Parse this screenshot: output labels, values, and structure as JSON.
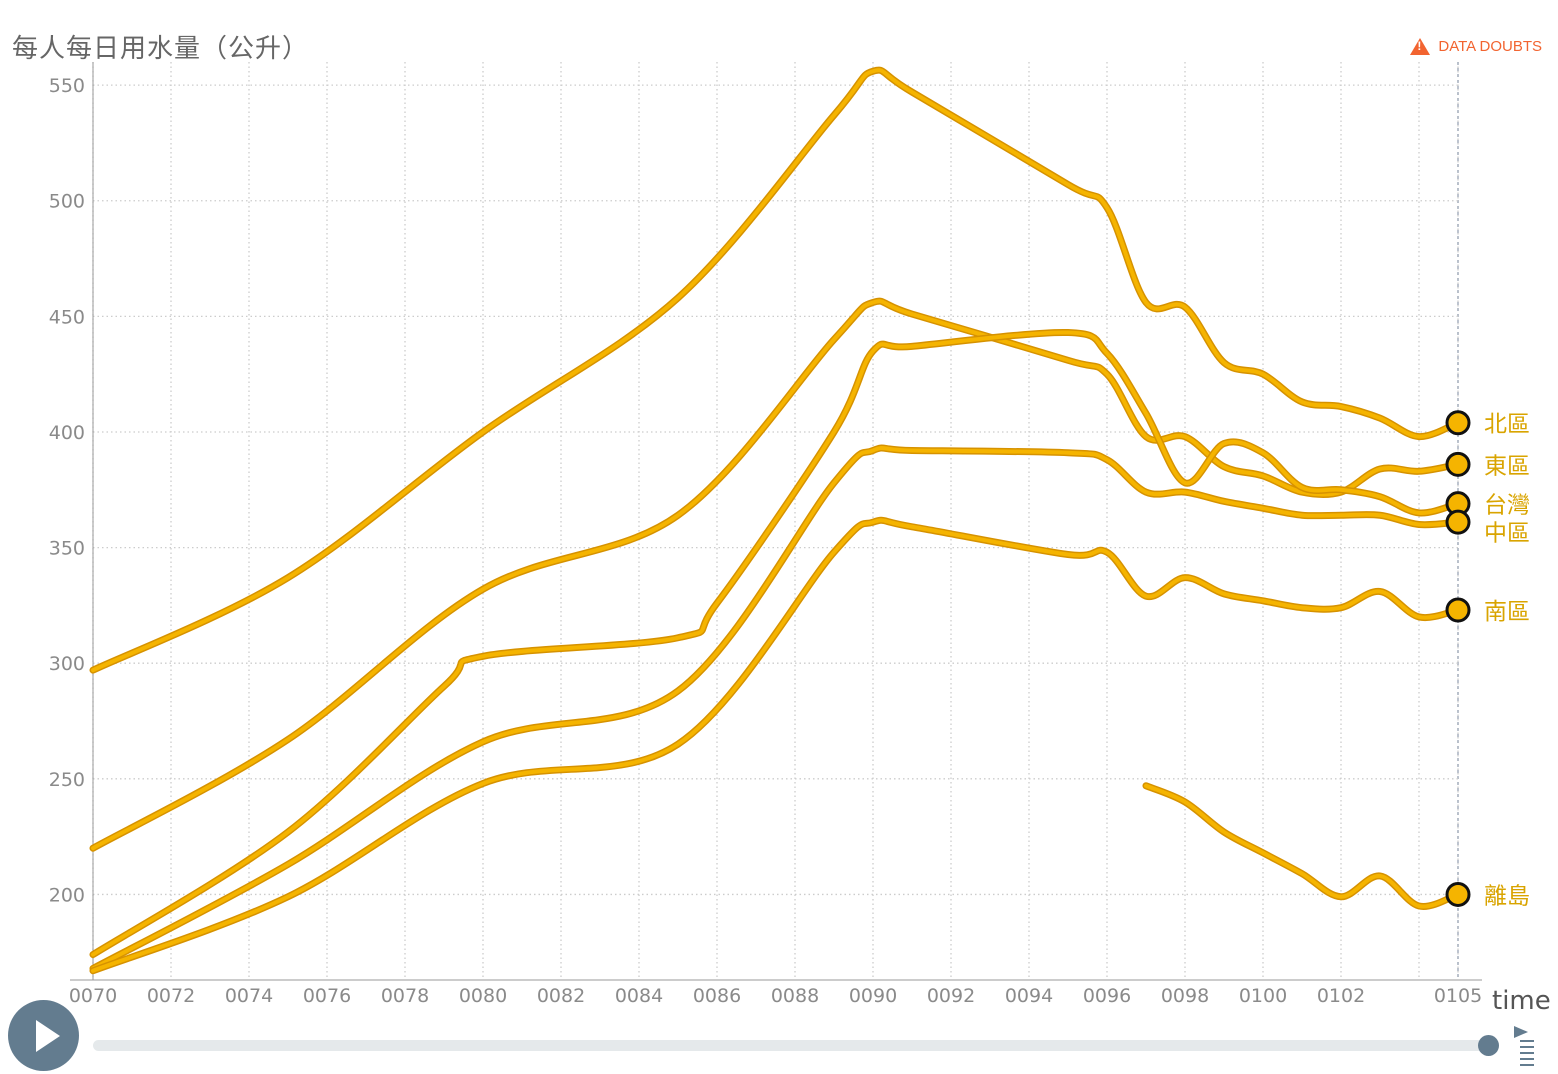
{
  "header": {
    "y_axis_title": "每人每日用水量（公升）",
    "data_doubts": "DATA DOUBTS"
  },
  "timeline": {
    "label": "time"
  },
  "colors": {
    "series": "#f5b400",
    "series_dark": "#d69200",
    "marker_stroke": "#111111",
    "grid": "#cccccc",
    "axis_text": "#8a8a8a",
    "label_text": "#d9a400",
    "warning": "#f26430",
    "control": "#637c8f"
  },
  "icons": {
    "warning": "warning-triangle-icon",
    "play": "play-icon",
    "speed": "speed-icon"
  },
  "chart_data": {
    "type": "line",
    "xlabel": "time",
    "ylabel": "每人每日用水量（公升）",
    "xlim": [
      70,
      105
    ],
    "ylim": [
      163,
      560
    ],
    "x_ticks": [
      "0070",
      "0072",
      "0074",
      "0076",
      "0078",
      "0080",
      "0082",
      "0084",
      "0086",
      "0088",
      "0090",
      "0092",
      "0094",
      "0096",
      "0098",
      "0100",
      "0102",
      "0105"
    ],
    "y_ticks": [
      200,
      250,
      300,
      350,
      400,
      450,
      500,
      550
    ],
    "grid": true,
    "current_time": "0105",
    "series": [
      {
        "name": "北區",
        "x": [
          70,
          75,
          80,
          85,
          89,
          90,
          91,
          95,
          96,
          97,
          98,
          99,
          100,
          101,
          102,
          103,
          104,
          105
        ],
        "y": [
          297,
          337,
          400,
          458,
          537,
          556,
          547,
          507,
          497,
          456,
          454,
          430,
          425,
          413,
          411,
          406,
          398,
          404
        ]
      },
      {
        "name": "東區",
        "x": [
          70,
          75,
          80,
          85,
          89,
          90,
          91,
          95,
          96,
          97,
          98,
          99,
          100,
          101,
          102,
          103,
          104,
          105
        ],
        "y": [
          220,
          267,
          332,
          364,
          440,
          456,
          451,
          431,
          425,
          398,
          398,
          385,
          381,
          374,
          374,
          384,
          383,
          386
        ]
      },
      {
        "name": "台灣",
        "x": [
          70,
          75,
          79,
          80,
          85,
          86,
          89,
          90,
          91,
          95,
          96,
          97,
          98,
          99,
          100,
          101,
          102,
          103,
          104,
          105
        ],
        "y": [
          174,
          227,
          290,
          303,
          311,
          326,
          400,
          435,
          437,
          443,
          434,
          408,
          378,
          395,
          391,
          376,
          375,
          372,
          365,
          369
        ]
      },
      {
        "name": "中區",
        "x": [
          70,
          75,
          80,
          85,
          89,
          90,
          91,
          95,
          96,
          97,
          98,
          99,
          100,
          101,
          102,
          103,
          104,
          105
        ],
        "y": [
          168,
          213,
          266,
          288,
          378,
          392,
          392,
          391,
          388,
          374,
          374,
          370,
          367,
          364,
          364,
          364,
          360,
          361
        ]
      },
      {
        "name": "南區",
        "x": [
          70,
          75,
          80,
          85,
          89,
          90,
          91,
          95,
          96,
          97,
          98,
          99,
          100,
          101,
          102,
          103,
          104,
          105
        ],
        "y": [
          167,
          199,
          248,
          265,
          348,
          361,
          359,
          347,
          348,
          329,
          337,
          330,
          327,
          324,
          324,
          331,
          320,
          323
        ]
      },
      {
        "name": "離島",
        "x": [
          97,
          98,
          99,
          100,
          101,
          102,
          103,
          104,
          105
        ],
        "y": [
          247,
          240,
          227,
          218,
          209,
          199,
          208,
          195,
          200
        ]
      }
    ]
  }
}
